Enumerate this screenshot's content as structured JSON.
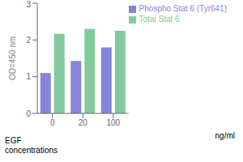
{
  "chart_data": {
    "type": "bar",
    "categories": [
      "0",
      "20",
      "100"
    ],
    "series": [
      {
        "name": "Phospho Stat 6 (Tyr641)",
        "color": "#8884d8",
        "values": [
          1.1,
          1.43,
          1.8
        ]
      },
      {
        "name": "Total Stat 6",
        "color": "#82ca9d",
        "values": [
          2.17,
          2.3,
          2.25
        ]
      }
    ],
    "ylabel": "OD=450 nm",
    "xlabel": "EGF\nconcentrations",
    "annotations": [
      "ng/ml"
    ],
    "ylim": [
      0,
      3
    ],
    "yticks": [
      0,
      1,
      2,
      3
    ],
    "grid": false,
    "legend": "top right"
  }
}
